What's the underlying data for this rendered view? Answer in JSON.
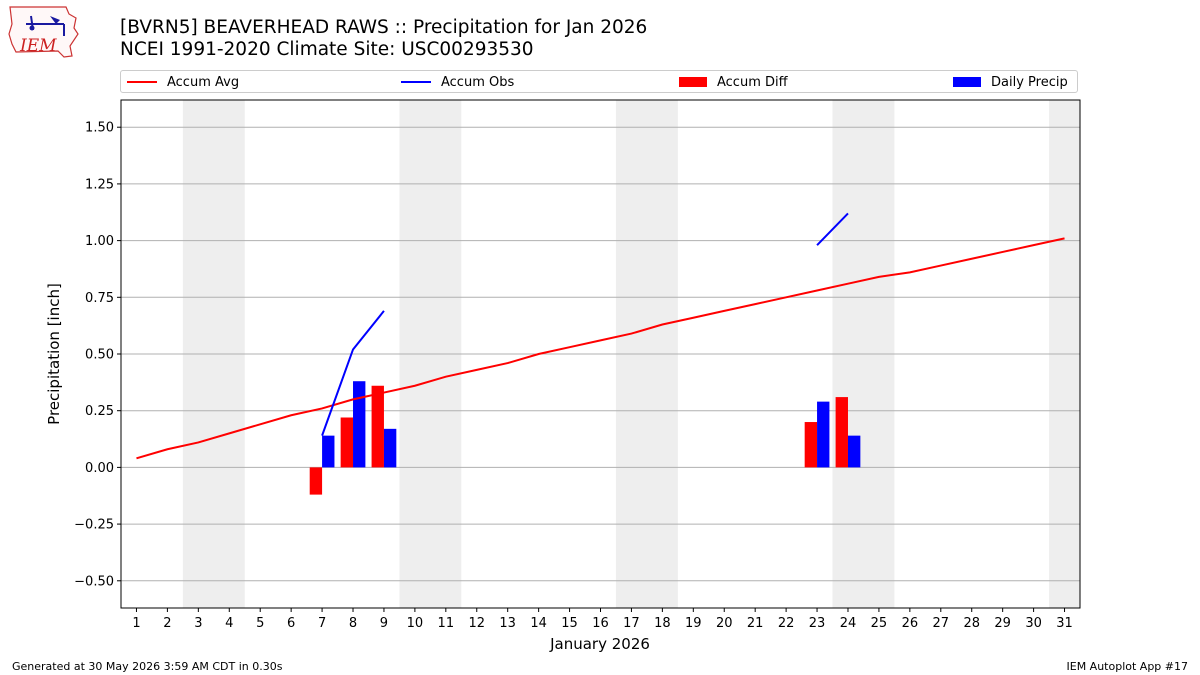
{
  "title_line1": "[BVRN5] BEAVERHEAD RAWS :: Precipitation for Jan 2026",
  "title_line2": "NCEI 1991-2020 Climate Site: USC00293530",
  "logo_text": "IEM",
  "footer_left": "Generated at 30 May 2026 3:59 AM CDT in 0.30s",
  "footer_right": "IEM Autoplot App #17",
  "colors": {
    "avg": "#ff0000",
    "obs": "#0000ff",
    "diff": "#ff0000",
    "daily": "#0000ff",
    "weekend_shade": "#eeeeee",
    "grid": "#b0b0b0"
  },
  "chart_data": {
    "type": "bar",
    "xlabel": "January 2026",
    "ylabel": "Precipitation [inch]",
    "xlim": [
      0.5,
      31.5
    ],
    "ylim": [
      -0.62,
      1.62
    ],
    "yticks": [
      -0.5,
      -0.25,
      0.0,
      0.25,
      0.5,
      0.75,
      1.0,
      1.25,
      1.5
    ],
    "ytick_labels": [
      "−0.50",
      "−0.25",
      "0.00",
      "0.25",
      "0.50",
      "0.75",
      "1.00",
      "1.25",
      "1.50"
    ],
    "x_ticks": [
      "1",
      "2",
      "3",
      "4",
      "5",
      "6",
      "7",
      "8",
      "9",
      "10",
      "11",
      "12",
      "13",
      "14",
      "15",
      "16",
      "17",
      "18",
      "19",
      "20",
      "21",
      "22",
      "23",
      "24",
      "25",
      "26",
      "27",
      "28",
      "29",
      "30",
      "31"
    ],
    "grid": "horizontal",
    "legend_position": "top",
    "weekend_shading": [
      [
        3,
        4
      ],
      [
        10,
        11
      ],
      [
        17,
        18
      ],
      [
        24,
        25
      ],
      [
        31,
        31
      ]
    ],
    "legend": [
      "Accum Avg",
      "Accum Obs",
      "Accum Diff",
      "Daily Precip"
    ],
    "series": [
      {
        "name": "Accum Avg",
        "kind": "line",
        "x": [
          1,
          2,
          3,
          4,
          5,
          6,
          7,
          8,
          9,
          10,
          11,
          12,
          13,
          14,
          15,
          16,
          17,
          18,
          19,
          20,
          21,
          22,
          23,
          24,
          25,
          26,
          27,
          28,
          29,
          30,
          31
        ],
        "values": [
          0.04,
          0.08,
          0.11,
          0.15,
          0.19,
          0.23,
          0.26,
          0.3,
          0.33,
          0.36,
          0.4,
          0.43,
          0.46,
          0.5,
          0.53,
          0.56,
          0.59,
          0.63,
          0.66,
          0.69,
          0.72,
          0.75,
          0.78,
          0.81,
          0.84,
          0.86,
          0.89,
          0.92,
          0.95,
          0.98,
          1.01
        ]
      },
      {
        "name": "Accum Obs",
        "kind": "line",
        "segments": [
          {
            "x": [
              7,
              8,
              9
            ],
            "values": [
              0.14,
              0.52,
              0.69
            ]
          },
          {
            "x": [
              23,
              24
            ],
            "values": [
              0.98,
              1.12
            ]
          }
        ]
      },
      {
        "name": "Accum Diff",
        "kind": "bar",
        "x": [
          6.8,
          7.8,
          8.8,
          22.8,
          23.8
        ],
        "values": [
          -0.12,
          0.22,
          0.36,
          0.2,
          0.31
        ]
      },
      {
        "name": "Daily Precip",
        "kind": "bar",
        "x": [
          7.2,
          8.2,
          9.2,
          23.2,
          24.2
        ],
        "values": [
          0.14,
          0.38,
          0.17,
          0.29,
          0.14
        ]
      }
    ]
  }
}
